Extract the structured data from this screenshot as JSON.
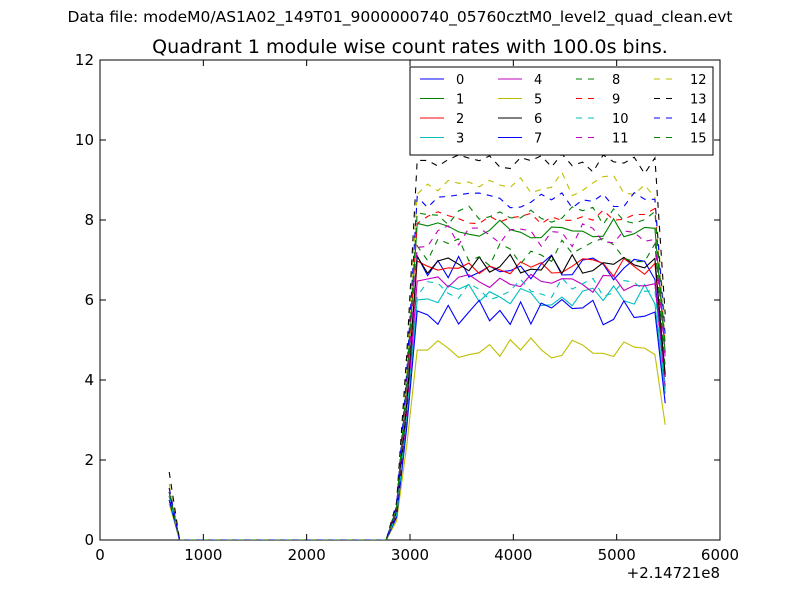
{
  "header": {
    "supertitle": "Data file: modeM0/AS1A02_149T01_9000000740_05760cztM0_level2_quad_clean.evt"
  },
  "chart_data": {
    "type": "line",
    "title": "Quadrant 1 module wise count rates with 100.0s bins.",
    "xlabel": "",
    "ylabel": "",
    "x_offset_text": "+2.14721e8",
    "xlim": [
      0,
      6000
    ],
    "ylim": [
      0,
      12
    ],
    "xticks": [
      "0",
      "1000",
      "2000",
      "3000",
      "4000",
      "5000",
      "6000"
    ],
    "yticks": [
      "0",
      "2",
      "4",
      "6",
      "8",
      "10",
      "12"
    ],
    "grid": false,
    "legend_position": "top-right",
    "x": [
      670,
      770,
      870,
      970,
      1070,
      1170,
      1270,
      1370,
      1470,
      1570,
      1670,
      1770,
      1870,
      1970,
      2070,
      2170,
      2270,
      2370,
      2470,
      2570,
      2670,
      2770,
      2870,
      2970,
      3070,
      3170,
      3270,
      3370,
      3470,
      3570,
      3670,
      3770,
      3870,
      3970,
      4070,
      4170,
      4270,
      4370,
      4470,
      4570,
      4670,
      4770,
      4870,
      4970,
      5070,
      5170,
      5270,
      5370,
      5470
    ],
    "series": [
      {
        "name": "0",
        "color": "#0000ff",
        "dash": "solid",
        "level": 6.8,
        "amp": 0.35,
        "start": 1.2
      },
      {
        "name": "1",
        "color": "#008000",
        "dash": "solid",
        "level": 7.8,
        "amp": 0.25,
        "start": 1.1
      },
      {
        "name": "2",
        "color": "#ff0000",
        "dash": "solid",
        "level": 6.8,
        "amp": 0.25,
        "start": 1.0
      },
      {
        "name": "3",
        "color": "#00bfbf",
        "dash": "solid",
        "level": 6.1,
        "amp": 0.3,
        "start": 1.0
      },
      {
        "name": "4",
        "color": "#bf00bf",
        "dash": "solid",
        "level": 6.4,
        "amp": 0.25,
        "start": 1.1
      },
      {
        "name": "5",
        "color": "#bfbf00",
        "dash": "solid",
        "level": 4.8,
        "amp": 0.25,
        "start": 0.9
      },
      {
        "name": "6",
        "color": "#000000",
        "dash": "solid",
        "level": 6.9,
        "amp": 0.25,
        "start": 1.2
      },
      {
        "name": "7",
        "color": "#0000ff",
        "dash": "solid",
        "level": 5.7,
        "amp": 0.35,
        "start": 1.0
      },
      {
        "name": "8",
        "color": "#008000",
        "dash": "dashed",
        "level": 7.2,
        "amp": 0.35,
        "start": 1.2
      },
      {
        "name": "9",
        "color": "#ff0000",
        "dash": "dashed",
        "level": 8.1,
        "amp": 0.2,
        "start": 1.3
      },
      {
        "name": "10",
        "color": "#00bfbf",
        "dash": "dashed",
        "level": 6.3,
        "amp": 0.3,
        "start": 1.1
      },
      {
        "name": "11",
        "color": "#bf00bf",
        "dash": "dashed",
        "level": 7.6,
        "amp": 0.35,
        "start": 1.2
      },
      {
        "name": "12",
        "color": "#bfbf00",
        "dash": "dashed",
        "level": 8.9,
        "amp": 0.35,
        "start": 1.4
      },
      {
        "name": "13",
        "color": "#000000",
        "dash": "dashed",
        "level": 9.4,
        "amp": 0.25,
        "start": 1.7
      },
      {
        "name": "14",
        "color": "#0000ff",
        "dash": "dashed",
        "level": 8.5,
        "amp": 0.2,
        "start": 1.3
      },
      {
        "name": "15",
        "color": "#008000",
        "dash": "dashed",
        "level": 8.1,
        "amp": 0.25,
        "start": 1.2
      }
    ]
  }
}
